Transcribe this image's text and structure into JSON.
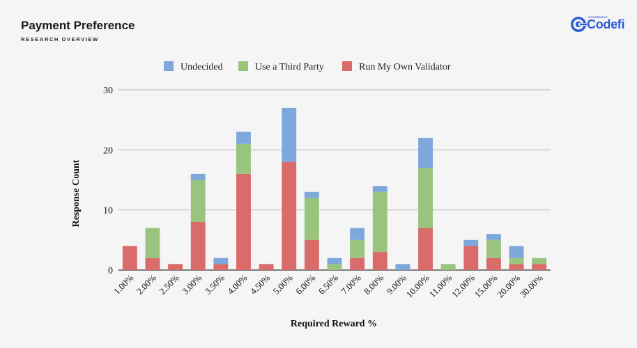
{
  "header": {
    "title": "Payment Preference",
    "subtitle": "RESEARCH OVERVIEW"
  },
  "logo": {
    "small_text": "CONSENSYS",
    "name": "Codefi",
    "color": "#2a5bd7"
  },
  "chart_data": {
    "type": "bar",
    "stacked": true,
    "title": "",
    "xlabel": "Required Reward %",
    "ylabel": "Response Count",
    "ylim": [
      0,
      30
    ],
    "yticks": [
      0,
      10,
      20,
      30
    ],
    "grid": true,
    "legend_position": "top",
    "categories": [
      "1.00%",
      "2.00%",
      "2.50%",
      "3.00%",
      "3.50%",
      "4.00%",
      "4.50%",
      "5.00%",
      "6.00%",
      "6.50%",
      "7.00%",
      "8.00%",
      "9.00%",
      "10.00%",
      "11.00%",
      "12.00%",
      "15.00%",
      "20.00%",
      "30.00%"
    ],
    "series": [
      {
        "name": "Run My Own Validator",
        "color": "#d96b6b",
        "values": [
          4,
          2,
          1,
          8,
          1,
          16,
          1,
          18,
          5,
          0,
          2,
          3,
          0,
          7,
          0,
          4,
          2,
          1,
          1
        ]
      },
      {
        "name": "Use a Third Party",
        "color": "#99c47e",
        "values": [
          0,
          5,
          0,
          7,
          0,
          5,
          0,
          0,
          7,
          1,
          3,
          10,
          0,
          10,
          1,
          0,
          3,
          1,
          1
        ]
      },
      {
        "name": "Undecided",
        "color": "#7ea7dc",
        "values": [
          0,
          0,
          0,
          1,
          1,
          2,
          0,
          9,
          1,
          1,
          2,
          1,
          1,
          5,
          0,
          1,
          1,
          2,
          0
        ]
      }
    ],
    "legend_order": [
      "Undecided",
      "Use a Third Party",
      "Run My Own Validator"
    ]
  }
}
